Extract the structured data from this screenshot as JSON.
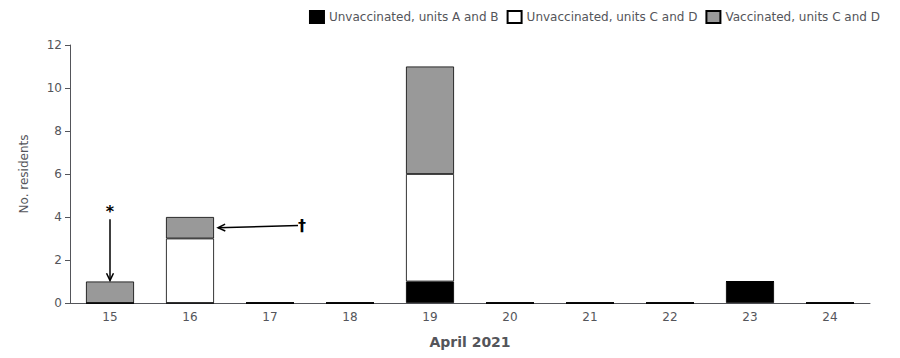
{
  "chart_data": {
    "type": "bar",
    "stacked": true,
    "categories": [
      15,
      16,
      17,
      18,
      19,
      20,
      21,
      22,
      23,
      24
    ],
    "xlabel": "April 2021",
    "ylabel": "No. residents",
    "series": [
      {
        "name": "Unvaccinated, units A and B",
        "color": "#000000",
        "values": [
          0,
          0,
          0,
          0,
          1,
          0,
          0,
          0,
          1,
          0
        ]
      },
      {
        "name": "Unvaccinated, units C and D",
        "color": "#ffffff",
        "values": [
          0,
          3,
          0,
          0,
          5,
          0,
          0,
          0,
          0,
          0
        ]
      },
      {
        "name": "Vaccinated, units C and D",
        "color": "#999999",
        "values": [
          1,
          1,
          0,
          0,
          5,
          0,
          0,
          0,
          0,
          0
        ]
      }
    ],
    "ylim": [
      0,
      12
    ],
    "yticks": [
      0,
      2,
      4,
      6,
      8,
      10,
      12
    ],
    "grid": false,
    "legend": "upper right",
    "annotations": [
      {
        "text": "*",
        "x": 15,
        "y": 3.9,
        "arrow_x": 15,
        "arrow_y": 1.05
      },
      {
        "text": "†",
        "x": 17.35,
        "y": 3.6,
        "arrow_x": 16.35,
        "arrow_y": 3.5
      }
    ]
  }
}
